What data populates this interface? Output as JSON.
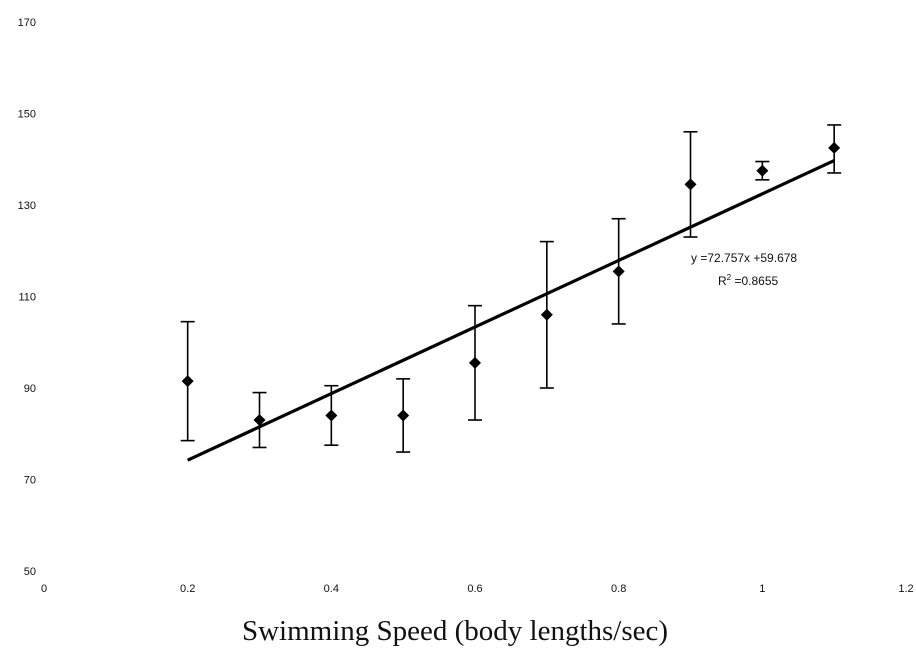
{
  "chart_data": {
    "type": "scatter",
    "title": "",
    "xlabel": "Swimming Speed (body lengths/sec)",
    "ylabel": "",
    "xlim": [
      0,
      1.2
    ],
    "ylim": [
      50,
      170
    ],
    "x_ticks": [
      "0",
      "0.2",
      "0.4",
      "0.6",
      "0.8",
      "1",
      "1.2"
    ],
    "y_ticks": [
      "50",
      "70",
      "90",
      "110",
      "130",
      "150",
      "170"
    ],
    "grid": false,
    "series": [
      {
        "points": [
          {
            "x": 0.2,
            "y": 91.5,
            "err_low": 78.5,
            "err_high": 104.5
          },
          {
            "x": 0.3,
            "y": 83.0,
            "err_low": 77.0,
            "err_high": 89.0
          },
          {
            "x": 0.4,
            "y": 84.0,
            "err_low": 77.5,
            "err_high": 90.5
          },
          {
            "x": 0.5,
            "y": 84.0,
            "err_low": 76.0,
            "err_high": 92.0
          },
          {
            "x": 0.6,
            "y": 95.5,
            "err_low": 83.0,
            "err_high": 108.0
          },
          {
            "x": 0.7,
            "y": 106.0,
            "err_low": 90.0,
            "err_high": 122.0
          },
          {
            "x": 0.8,
            "y": 115.5,
            "err_low": 104.0,
            "err_high": 127.0
          },
          {
            "x": 0.9,
            "y": 134.5,
            "err_low": 123.0,
            "err_high": 146.0
          },
          {
            "x": 1.0,
            "y": 137.5,
            "err_low": 135.5,
            "err_high": 139.5
          },
          {
            "x": 1.1,
            "y": 142.5,
            "err_low": 137.0,
            "err_high": 147.5
          }
        ]
      }
    ],
    "trendline": {
      "slope": 72.757,
      "intercept": 59.678,
      "x_range": [
        0.2,
        1.1
      ]
    },
    "annotations": {
      "equation": "y =72.757x +59.678",
      "r2_prefix": "R",
      "r2_sup": "2",
      "r2_value": " =0.8655"
    }
  }
}
